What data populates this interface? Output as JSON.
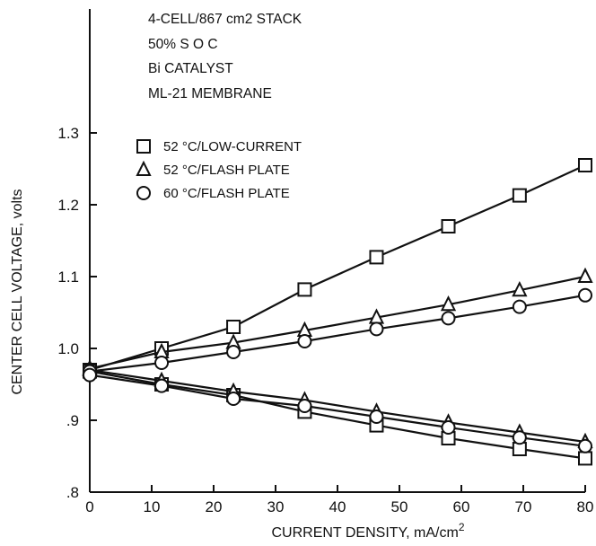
{
  "chart_data": {
    "type": "line",
    "xlabel": "CURRENT DENSITY, mA/cm2",
    "ylabel": "CENTER CELL VOLTAGE, volts",
    "xlim": [
      0,
      80
    ],
    "ylim": [
      0.8,
      1.3
    ],
    "x_ticks": [
      0,
      10,
      20,
      30,
      40,
      50,
      60,
      70,
      80
    ],
    "x_tick_labels": [
      "0",
      "10",
      "20",
      "30",
      "40",
      "50",
      "60",
      "70",
      "80"
    ],
    "y_ticks": [
      0.8,
      0.9,
      1.0,
      1.1,
      1.2,
      1.3
    ],
    "y_tick_labels": [
      ".8",
      ".9",
      "1.0",
      "1.1",
      "1.2",
      "1.3"
    ],
    "grid": false,
    "legend_position": "upper-left",
    "annotations": [
      "4-CELL/867 cm2 STACK",
      "50% S O C",
      "Bi CATALYST",
      "ML-21 MEMBRANE"
    ],
    "series": [
      {
        "name": "52 °C/LOW-CURRENT",
        "marker": "square",
        "branches": [
          {
            "part": "charge",
            "x": [
              0,
              11.6,
              23.2,
              34.7,
              46.3,
              57.9,
              69.4,
              80
            ],
            "y": [
              0.97,
              1.0,
              1.03,
              1.082,
              1.127,
              1.17,
              1.213,
              1.255
            ]
          },
          {
            "part": "discharge",
            "x": [
              0,
              11.6,
              23.2,
              34.7,
              46.3,
              57.9,
              69.4,
              80
            ],
            "y": [
              0.968,
              0.95,
              0.935,
              0.912,
              0.893,
              0.875,
              0.86,
              0.847
            ]
          }
        ]
      },
      {
        "name": "52 °C/FLASH PLATE",
        "marker": "triangle",
        "branches": [
          {
            "part": "charge",
            "x": [
              0,
              11.6,
              23.2,
              34.7,
              46.3,
              57.9,
              69.4,
              80
            ],
            "y": [
              0.972,
              0.995,
              1.008,
              1.025,
              1.043,
              1.061,
              1.081,
              1.1
            ]
          },
          {
            "part": "discharge",
            "x": [
              0,
              11.6,
              23.2,
              34.7,
              46.3,
              57.9,
              69.4,
              80
            ],
            "y": [
              0.97,
              0.955,
              0.94,
              0.928,
              0.912,
              0.897,
              0.883,
              0.87
            ]
          }
        ]
      },
      {
        "name": "60 °C/FLASH PLATE",
        "marker": "circle",
        "branches": [
          {
            "part": "charge",
            "x": [
              0,
              11.6,
              23.2,
              34.7,
              46.3,
              57.9,
              69.4,
              80
            ],
            "y": [
              0.968,
              0.98,
              0.995,
              1.01,
              1.027,
              1.042,
              1.058,
              1.074
            ]
          },
          {
            "part": "discharge",
            "x": [
              0,
              11.6,
              23.2,
              34.7,
              46.3,
              57.9,
              69.4,
              80
            ],
            "y": [
              0.963,
              0.948,
              0.93,
              0.92,
              0.905,
              0.89,
              0.876,
              0.864
            ]
          }
        ]
      }
    ]
  }
}
